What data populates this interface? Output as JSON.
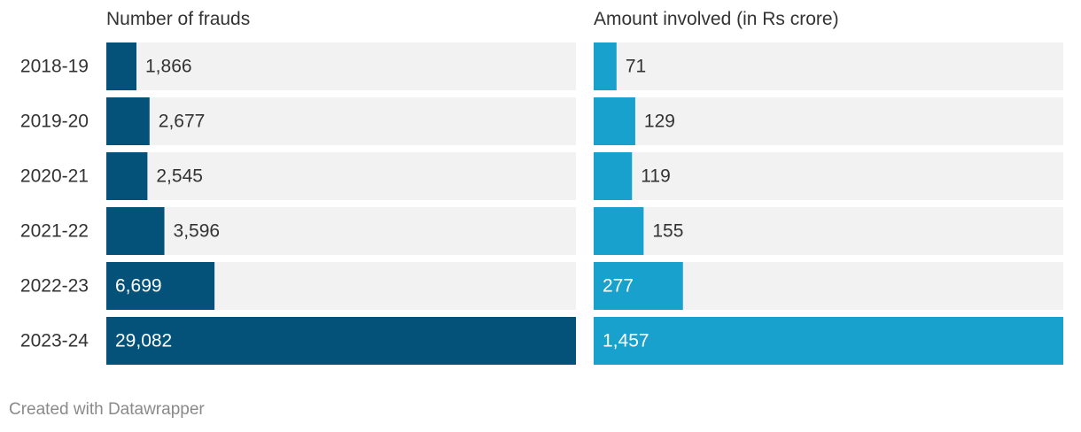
{
  "chart_data": [
    {
      "type": "bar",
      "orientation": "horizontal",
      "title": "Number of frauds",
      "categories": [
        "2018-19",
        "2019-20",
        "2020-21",
        "2021-22",
        "2022-23",
        "2023-24"
      ],
      "values": [
        1866,
        2677,
        2545,
        3596,
        6699,
        29082
      ],
      "value_labels": [
        "1,866",
        "2,677",
        "2,545",
        "3,596",
        "6,699",
        "29,082"
      ],
      "xlim": [
        0,
        29082
      ],
      "color": "#04527a",
      "track_color": "#f2f2f2",
      "label_inside_from_index": 4
    },
    {
      "type": "bar",
      "orientation": "horizontal",
      "title": "Amount involved (in Rs crore)",
      "categories": [
        "2018-19",
        "2019-20",
        "2020-21",
        "2021-22",
        "2022-23",
        "2023-24"
      ],
      "values": [
        71,
        129,
        119,
        155,
        277,
        1457
      ],
      "value_labels": [
        "71",
        "129",
        "119",
        "155",
        "277",
        "1,457"
      ],
      "xlim": [
        0,
        1457
      ],
      "color": "#18a1cd",
      "track_color": "#f2f2f2",
      "label_inside_from_index": 4
    }
  ],
  "footer": "Created with Datawrapper"
}
